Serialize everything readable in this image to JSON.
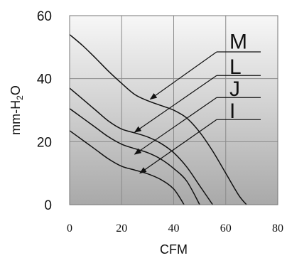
{
  "chart_data": {
    "type": "line",
    "xlabel": "CFM",
    "ylabel": "mm-H2O",
    "ylabel_main": "mm-H",
    "ylabel_sub": "2",
    "ylabel_tail": "O",
    "xlim": [
      0,
      80
    ],
    "ylim": [
      0,
      60
    ],
    "x_ticks": [
      "0",
      "20",
      "40",
      "60",
      "80"
    ],
    "y_ticks": [
      "0",
      "20",
      "40",
      "60"
    ],
    "grid": true,
    "background": "gradient-gray",
    "series": [
      {
        "name": "M",
        "x": [
          0,
          5,
          10,
          15,
          20,
          25,
          30,
          35,
          40,
          45,
          50,
          55,
          60,
          65,
          68
        ],
        "y": [
          54,
          50.5,
          46.5,
          42.3,
          38.5,
          35,
          33,
          31.5,
          30,
          27.5,
          23,
          17,
          10,
          3,
          0
        ]
      },
      {
        "name": "L",
        "x": [
          0,
          5,
          10,
          15,
          20,
          25,
          30,
          35,
          40,
          45,
          50,
          55
        ],
        "y": [
          37,
          33.5,
          30,
          26.5,
          24,
          22.8,
          21.5,
          19.5,
          16.5,
          12,
          6,
          0
        ]
      },
      {
        "name": "J",
        "x": [
          0,
          5,
          10,
          15,
          20,
          25,
          30,
          35,
          40,
          45,
          50
        ],
        "y": [
          30.5,
          27.5,
          24.5,
          21.5,
          19.2,
          17.8,
          16.5,
          14.5,
          11.5,
          7.5,
          0
        ]
      },
      {
        "name": "I",
        "x": [
          0,
          5,
          10,
          15,
          20,
          25,
          30,
          35,
          40,
          44
        ],
        "y": [
          23.5,
          20.5,
          17.5,
          14.5,
          12.2,
          11,
          9.8,
          8,
          5,
          0
        ]
      }
    ],
    "labels": [
      {
        "text": "M",
        "label_y": 52,
        "line_y": 48.5,
        "arrow_to": [
          31,
          33.5
        ]
      },
      {
        "text": "L",
        "label_y": 44,
        "line_y": 41,
        "arrow_to": [
          25,
          23
        ]
      },
      {
        "text": "J",
        "label_y": 37,
        "line_y": 34,
        "arrow_to": [
          25,
          16
        ]
      },
      {
        "text": "I",
        "label_y": 30,
        "line_y": 27,
        "arrow_to": [
          27,
          10
        ]
      }
    ]
  }
}
